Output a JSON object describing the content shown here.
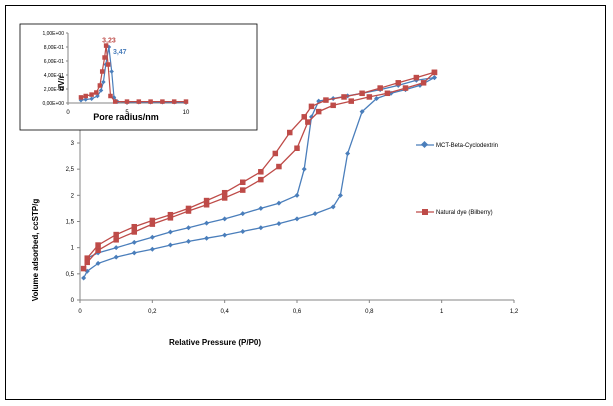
{
  "chart_data": [
    {
      "type": "line",
      "title": "",
      "xlabel": "Relative Pressure (P/P0)",
      "ylabel": "Volume adsorbed, ccSTP/g",
      "xlim": [
        0,
        1.2
      ],
      "ylim": [
        0,
        3.5
      ],
      "x_ticks": [
        "0",
        "0,2",
        "0,4",
        "0,6",
        "0,8",
        "1",
        "1,2"
      ],
      "y_ticks": [
        "0",
        "0,5",
        "1",
        "1,5",
        "2",
        "2,5",
        "3"
      ],
      "grid": false,
      "legend_position": "right",
      "series": [
        {
          "name": "MCT-Beta-Cyclodextrin",
          "color": "#4a7ebb",
          "marker": "diamond",
          "adsorption": [
            [
              0.01,
              0.42
            ],
            [
              0.02,
              0.55
            ],
            [
              0.05,
              0.7
            ],
            [
              0.1,
              0.82
            ],
            [
              0.15,
              0.9
            ],
            [
              0.2,
              0.97
            ],
            [
              0.25,
              1.05
            ],
            [
              0.3,
              1.12
            ],
            [
              0.35,
              1.18
            ],
            [
              0.4,
              1.24
            ],
            [
              0.45,
              1.31
            ],
            [
              0.5,
              1.38
            ],
            [
              0.55,
              1.46
            ],
            [
              0.6,
              1.55
            ],
            [
              0.65,
              1.65
            ],
            [
              0.7,
              1.78
            ],
            [
              0.72,
              2.0
            ],
            [
              0.74,
              2.8
            ],
            [
              0.78,
              3.6
            ],
            [
              0.82,
              3.85
            ],
            [
              0.86,
              3.95
            ],
            [
              0.9,
              4.02
            ],
            [
              0.94,
              4.1
            ],
            [
              0.98,
              4.25
            ]
          ],
          "desorption": [
            [
              0.98,
              4.25
            ],
            [
              0.93,
              4.2
            ],
            [
              0.88,
              4.1
            ],
            [
              0.83,
              4.02
            ],
            [
              0.78,
              3.95
            ],
            [
              0.74,
              3.9
            ],
            [
              0.7,
              3.85
            ],
            [
              0.66,
              3.8
            ],
            [
              0.64,
              3.5
            ],
            [
              0.62,
              2.5
            ],
            [
              0.6,
              2.0
            ],
            [
              0.55,
              1.85
            ],
            [
              0.5,
              1.75
            ],
            [
              0.45,
              1.65
            ],
            [
              0.4,
              1.55
            ],
            [
              0.35,
              1.47
            ],
            [
              0.3,
              1.38
            ],
            [
              0.25,
              1.3
            ],
            [
              0.2,
              1.2
            ],
            [
              0.15,
              1.1
            ],
            [
              0.1,
              1.0
            ],
            [
              0.05,
              0.9
            ],
            [
              0.02,
              0.8
            ]
          ]
        },
        {
          "name": "Natural dye (Bilberry)",
          "color": "#be4b48",
          "marker": "square",
          "adsorption": [
            [
              0.01,
              0.6
            ],
            [
              0.02,
              0.72
            ],
            [
              0.05,
              0.95
            ],
            [
              0.1,
              1.15
            ],
            [
              0.15,
              1.3
            ],
            [
              0.2,
              1.45
            ],
            [
              0.25,
              1.57
            ],
            [
              0.3,
              1.7
            ],
            [
              0.35,
              1.82
            ],
            [
              0.4,
              1.95
            ],
            [
              0.45,
              2.1
            ],
            [
              0.5,
              2.3
            ],
            [
              0.55,
              2.55
            ],
            [
              0.6,
              2.9
            ],
            [
              0.63,
              3.4
            ],
            [
              0.66,
              3.6
            ],
            [
              0.7,
              3.72
            ],
            [
              0.75,
              3.8
            ],
            [
              0.8,
              3.88
            ],
            [
              0.85,
              3.95
            ],
            [
              0.9,
              4.05
            ],
            [
              0.95,
              4.15
            ],
            [
              0.98,
              4.35
            ]
          ],
          "desorption": [
            [
              0.98,
              4.35
            ],
            [
              0.93,
              4.25
            ],
            [
              0.88,
              4.15
            ],
            [
              0.83,
              4.05
            ],
            [
              0.78,
              3.95
            ],
            [
              0.73,
              3.88
            ],
            [
              0.68,
              3.82
            ],
            [
              0.64,
              3.7
            ],
            [
              0.62,
              3.5
            ],
            [
              0.58,
              3.2
            ],
            [
              0.54,
              2.8
            ],
            [
              0.5,
              2.45
            ],
            [
              0.45,
              2.25
            ],
            [
              0.4,
              2.05
            ],
            [
              0.35,
              1.9
            ],
            [
              0.3,
              1.75
            ],
            [
              0.25,
              1.63
            ],
            [
              0.2,
              1.52
            ],
            [
              0.15,
              1.4
            ],
            [
              0.1,
              1.25
            ],
            [
              0.05,
              1.05
            ],
            [
              0.02,
              0.8
            ]
          ]
        }
      ]
    },
    {
      "type": "line",
      "title": "",
      "xlabel": "Pore radius/nm",
      "ylabel": "dV/r",
      "xlim": [
        0,
        10
      ],
      "ylim": [
        0,
        1.0
      ],
      "x_ticks": [
        "0",
        "5",
        "10"
      ],
      "y_ticks": [
        "0,00E+00",
        "2,00E-01",
        "4,00E-01",
        "6,00E-01",
        "8,00E-01",
        "1,00E+00"
      ],
      "annotations": [
        {
          "text": "3,23",
          "x": 3.23,
          "y": 0.82,
          "color": "#be4b48"
        },
        {
          "text": "3,47",
          "x": 3.47,
          "y": 0.76,
          "color": "#4a7ebb"
        }
      ],
      "series": [
        {
          "name": "MCT-Beta-Cyclodextrin",
          "color": "#4a7ebb",
          "marker": "diamond",
          "points": [
            [
              1.1,
              0.04
            ],
            [
              1.5,
              0.05
            ],
            [
              2.0,
              0.06
            ],
            [
              2.5,
              0.1
            ],
            [
              2.8,
              0.18
            ],
            [
              3.0,
              0.3
            ],
            [
              3.2,
              0.55
            ],
            [
              3.47,
              0.8
            ],
            [
              3.7,
              0.45
            ],
            [
              3.9,
              0.08
            ],
            [
              4.2,
              0.02
            ],
            [
              5.0,
              0.01
            ],
            [
              6.0,
              0.01
            ],
            [
              7.0,
              0.01
            ],
            [
              8.0,
              0.01
            ],
            [
              9.0,
              0.01
            ],
            [
              10.0,
              0.01
            ]
          ]
        },
        {
          "name": "Natural dye (Bilberry)",
          "color": "#be4b48",
          "marker": "square",
          "points": [
            [
              1.1,
              0.08
            ],
            [
              1.5,
              0.1
            ],
            [
              2.0,
              0.12
            ],
            [
              2.4,
              0.15
            ],
            [
              2.7,
              0.25
            ],
            [
              2.9,
              0.45
            ],
            [
              3.1,
              0.65
            ],
            [
              3.23,
              0.82
            ],
            [
              3.4,
              0.55
            ],
            [
              3.6,
              0.1
            ],
            [
              4.0,
              0.02
            ],
            [
              5.0,
              0.02
            ],
            [
              6.0,
              0.02
            ],
            [
              7.0,
              0.02
            ],
            [
              8.0,
              0.02
            ],
            [
              9.0,
              0.02
            ],
            [
              10.0,
              0.02
            ]
          ]
        }
      ]
    }
  ]
}
